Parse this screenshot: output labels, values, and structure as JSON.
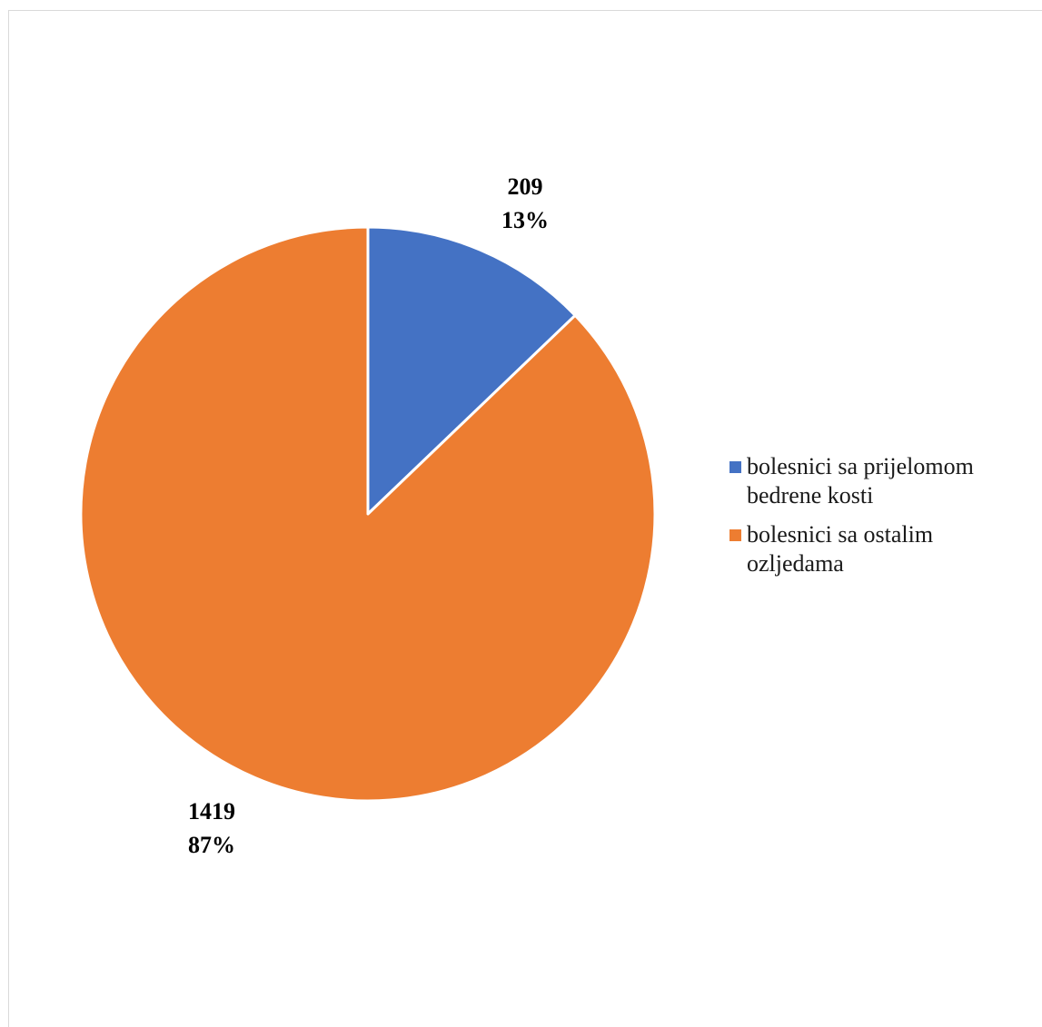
{
  "chart_data": {
    "type": "pie",
    "categories": [
      "bolesnici sa prijelomom bedrene kosti",
      "bolesnici sa ostalim ozljedama"
    ],
    "values": [
      209,
      1419
    ],
    "percentages": [
      "13%",
      "87%"
    ],
    "value_labels": [
      "209",
      "1419"
    ],
    "colors": [
      "#4472C4",
      "#ED7D31"
    ],
    "legend_position": "right",
    "start_angle": "12 o'clock, clockwise"
  }
}
